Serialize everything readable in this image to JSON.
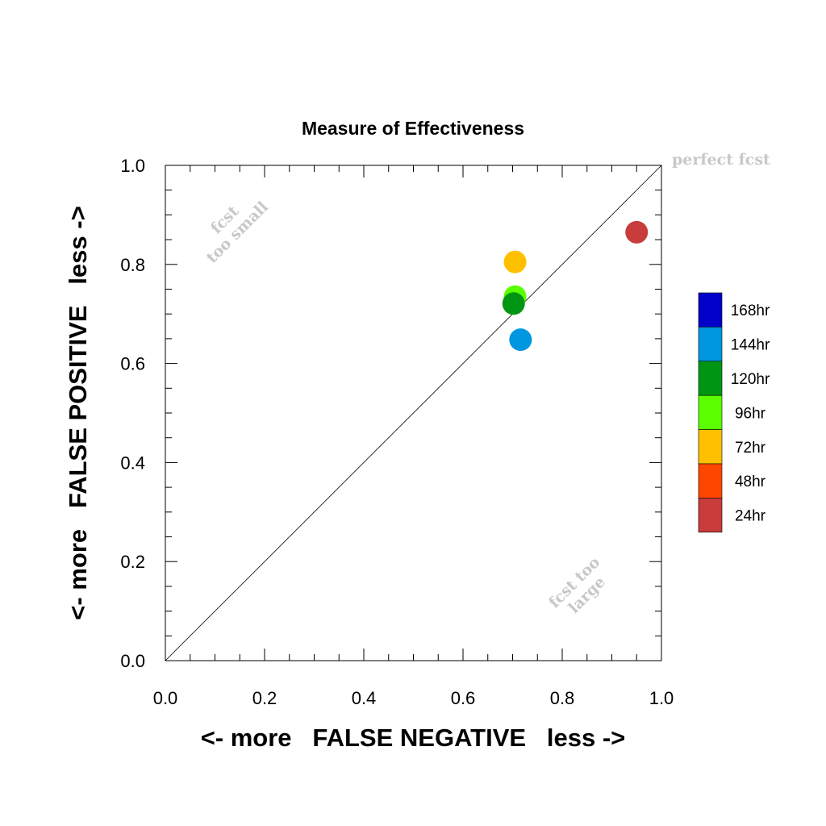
{
  "chart_data": {
    "type": "scatter",
    "title": "Measure of Effectiveness",
    "xlabel": "<- more   FALSE NEGATIVE   less ->",
    "ylabel": "<- more   FALSE POSITIVE   less ->",
    "xlim": [
      0.0,
      1.0
    ],
    "ylim": [
      0.0,
      1.0
    ],
    "x_ticks": [
      "0.0",
      "0.2",
      "0.4",
      "0.6",
      "0.8",
      "1.0"
    ],
    "y_ticks": [
      "0.0",
      "0.2",
      "0.4",
      "0.6",
      "0.8",
      "1.0"
    ],
    "diagonal_reference": true,
    "grid": false,
    "annotations": {
      "perfect": "perfect fcst",
      "small_line1": "fcst",
      "small_line2": "too small",
      "large_line1": "fcst too",
      "large_line2": "large"
    },
    "legend": [
      {
        "label": "168hr",
        "color": "#0000c8"
      },
      {
        "label": "144hr",
        "color": "#0096e0"
      },
      {
        "label": "120hr",
        "color": "#009614"
      },
      {
        "label": "96hr",
        "color": "#5aff00"
      },
      {
        "label": "72hr",
        "color": "#ffc000"
      },
      {
        "label": "48hr",
        "color": "#ff4600"
      },
      {
        "label": "24hr",
        "color": "#c83c3c"
      }
    ],
    "points": [
      {
        "x": 0.95,
        "y": 0.865,
        "color": "#c83c3c"
      },
      {
        "x": 0.705,
        "y": 0.805,
        "color": "#ffc000"
      },
      {
        "x": 0.705,
        "y": 0.735,
        "color": "#5aff00"
      },
      {
        "x": 0.702,
        "y": 0.721,
        "color": "#009614"
      },
      {
        "x": 0.716,
        "y": 0.648,
        "color": "#0096e0"
      }
    ]
  }
}
